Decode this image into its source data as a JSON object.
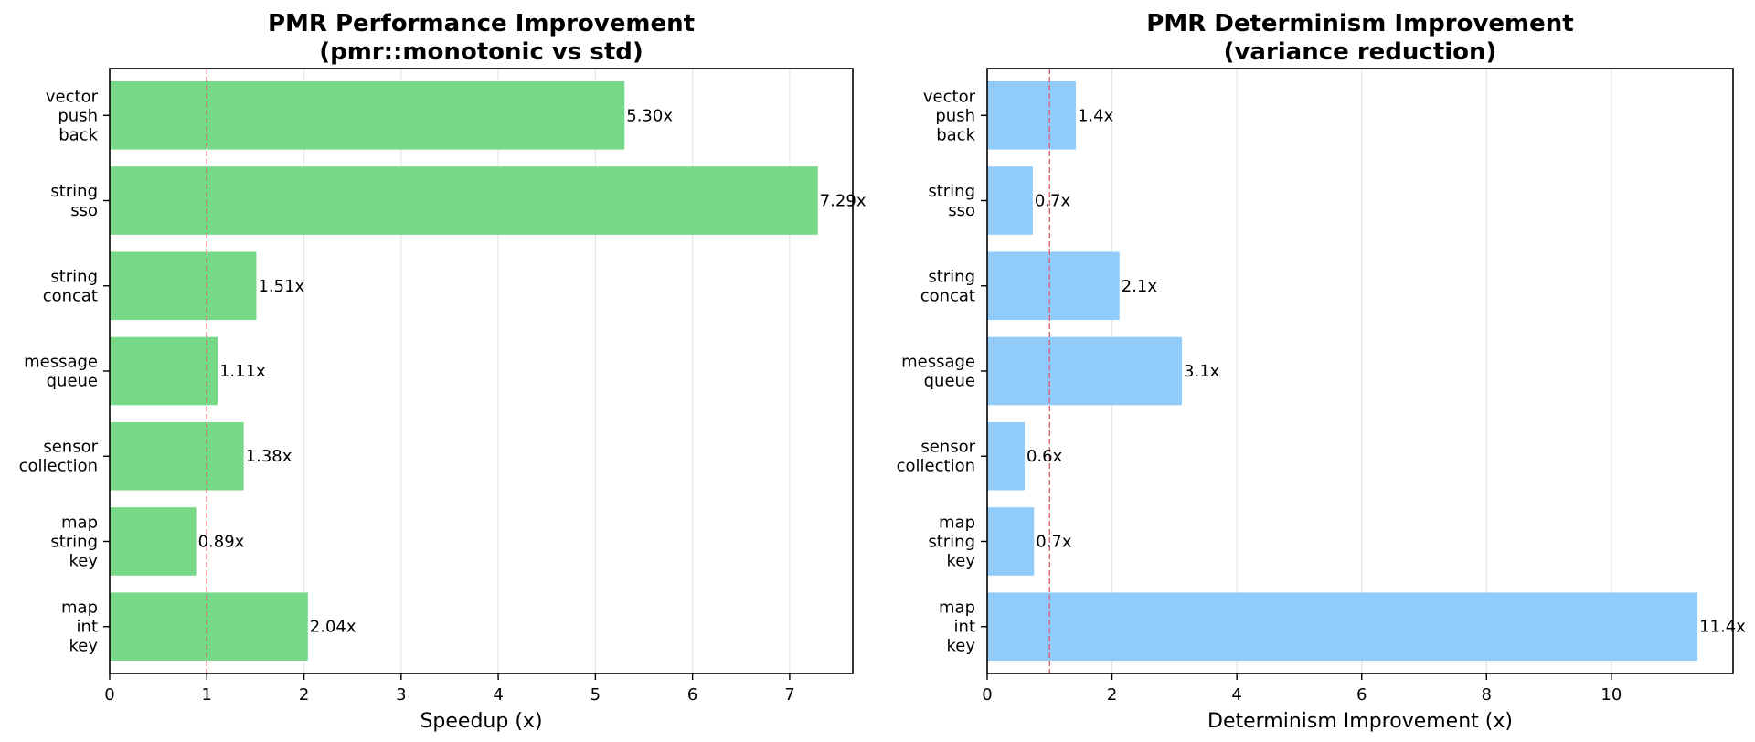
{
  "chart_data": [
    {
      "type": "bar",
      "orientation": "horizontal",
      "title": [
        "PMR Performance Improvement",
        "(pmr::monotonic vs std)"
      ],
      "xlabel": "Speedup (x)",
      "ylabel": "",
      "categories": [
        [
          "vector",
          "push",
          "back"
        ],
        [
          "string",
          "sso"
        ],
        [
          "string",
          "concat"
        ],
        [
          "message",
          "queue"
        ],
        [
          "sensor",
          "collection"
        ],
        [
          "map",
          "string",
          "key"
        ],
        [
          "map",
          "int",
          "key"
        ]
      ],
      "values": [
        5.3,
        7.29,
        1.51,
        1.11,
        1.38,
        0.89,
        2.04
      ],
      "value_labels": [
        "5.30x",
        "7.29x",
        "1.51x",
        "1.11x",
        "1.38x",
        "0.89x",
        "2.04x"
      ],
      "xlim": [
        0,
        7.65
      ],
      "xticks": [
        0,
        1,
        2,
        3,
        4,
        5,
        6,
        7
      ],
      "xtick_labels": [
        "0",
        "1",
        "2",
        "3",
        "4",
        "5",
        "6",
        "7"
      ],
      "reference_line": 1,
      "bar_color": "#77d887",
      "reference_color": "#e06070",
      "grid": "x"
    },
    {
      "type": "bar",
      "orientation": "horizontal",
      "title": [
        "PMR Determinism Improvement",
        "(variance reduction)"
      ],
      "xlabel": "Determinism Improvement (x)",
      "ylabel": "",
      "categories": [
        [
          "vector",
          "push",
          "back"
        ],
        [
          "string",
          "sso"
        ],
        [
          "string",
          "concat"
        ],
        [
          "message",
          "queue"
        ],
        [
          "sensor",
          "collection"
        ],
        [
          "map",
          "string",
          "key"
        ],
        [
          "map",
          "int",
          "key"
        ]
      ],
      "values": [
        1.42,
        0.73,
        2.12,
        3.12,
        0.6,
        0.75,
        11.38
      ],
      "value_labels": [
        "1.4x",
        "0.7x",
        "2.1x",
        "3.1x",
        "0.6x",
        "0.7x",
        "11.4x"
      ],
      "xlim": [
        0,
        11.95
      ],
      "xticks": [
        0,
        2,
        4,
        6,
        8,
        10
      ],
      "xtick_labels": [
        "0",
        "2",
        "4",
        "6",
        "8",
        "10"
      ],
      "reference_line": 1,
      "bar_color": "#91cbfa",
      "reference_color": "#e06070",
      "grid": "x"
    }
  ]
}
